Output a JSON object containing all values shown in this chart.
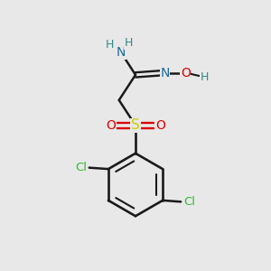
{
  "bg_color": "#e8e8e8",
  "bond_color": "#1a1a1a",
  "colors": {
    "N": "#1a6b9a",
    "O": "#dd0000",
    "S": "#cccc00",
    "Cl": "#33bb33",
    "H": "#338888",
    "C": "#1a1a1a"
  }
}
